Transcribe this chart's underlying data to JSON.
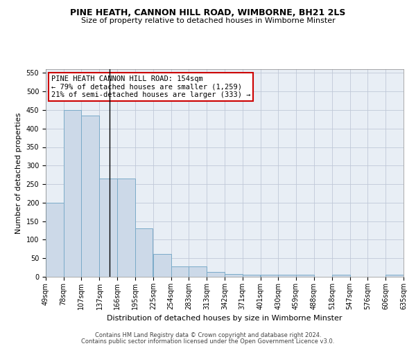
{
  "title": "PINE HEATH, CANNON HILL ROAD, WIMBORNE, BH21 2LS",
  "subtitle": "Size of property relative to detached houses in Wimborne Minster",
  "xlabel": "Distribution of detached houses by size in Wimborne Minster",
  "ylabel": "Number of detached properties",
  "footnote1": "Contains HM Land Registry data © Crown copyright and database right 2024.",
  "footnote2": "Contains public sector information licensed under the Open Government Licence v3.0.",
  "bar_color": "#ccd9e8",
  "bar_edgecolor": "#7aaac8",
  "grid_color": "#c0c8d8",
  "annotation_box_color": "#cc0000",
  "annotation_text": "PINE HEATH CANNON HILL ROAD: 154sqm\n← 79% of detached houses are smaller (1,259)\n21% of semi-detached houses are larger (333) →",
  "property_size_sqm": 154,
  "bin_edges": [
    49,
    78,
    107,
    137,
    166,
    195,
    225,
    254,
    283,
    313,
    342,
    371,
    401,
    430,
    459,
    488,
    518,
    547,
    576,
    606,
    635
  ],
  "bin_labels": [
    "49sqm",
    "78sqm",
    "107sqm",
    "137sqm",
    "166sqm",
    "195sqm",
    "225sqm",
    "254sqm",
    "283sqm",
    "313sqm",
    "342sqm",
    "371sqm",
    "401sqm",
    "430sqm",
    "459sqm",
    "488sqm",
    "518sqm",
    "547sqm",
    "576sqm",
    "606sqm",
    "635sqm"
  ],
  "bar_heights": [
    200,
    450,
    435,
    265,
    265,
    130,
    62,
    28,
    28,
    14,
    8,
    6,
    6,
    6,
    6,
    0,
    5,
    0,
    0,
    5
  ],
  "ylim": [
    0,
    560
  ],
  "yticks": [
    0,
    50,
    100,
    150,
    200,
    250,
    300,
    350,
    400,
    450,
    500,
    550
  ],
  "figsize": [
    6.0,
    5.0
  ],
  "dpi": 100,
  "title_fontsize": 9,
  "subtitle_fontsize": 8,
  "ylabel_fontsize": 8,
  "xlabel_fontsize": 8,
  "tick_fontsize": 7,
  "footnote_fontsize": 6,
  "annotation_fontsize": 7.5,
  "bg_color": "#e8eef5"
}
